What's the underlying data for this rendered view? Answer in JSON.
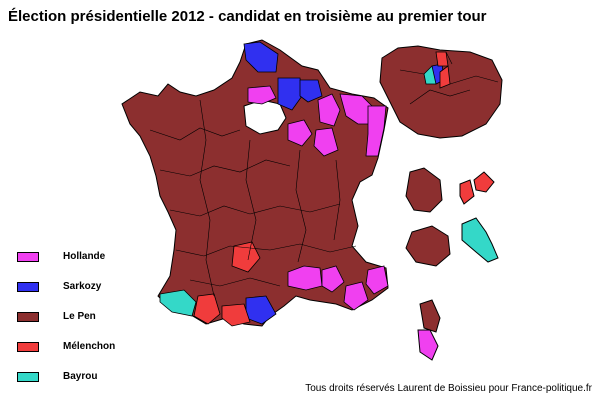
{
  "title": "Élection présidentielle 2012 - candidat en troisième au premier tour",
  "colors": {
    "Hollande": "#f040f0",
    "Sarkozy": "#3030f0",
    "Le Pen": "#8c2f2f",
    "Mélenchon": "#f03c3c",
    "Bayrou": "#34d8c8"
  },
  "legend": [
    {
      "label": "Hollande",
      "color": "#f040f0"
    },
    {
      "label": "Sarkozy",
      "color": "#3030f0"
    },
    {
      "label": "Le Pen",
      "color": "#8c2f2f"
    },
    {
      "label": "Mélenchon",
      "color": "#f03c3c"
    },
    {
      "label": "Bayrou",
      "color": "#34d8c8"
    }
  ],
  "credit": "Tous droits réservés Laurent de Boissieu pour France-politique.fr"
}
